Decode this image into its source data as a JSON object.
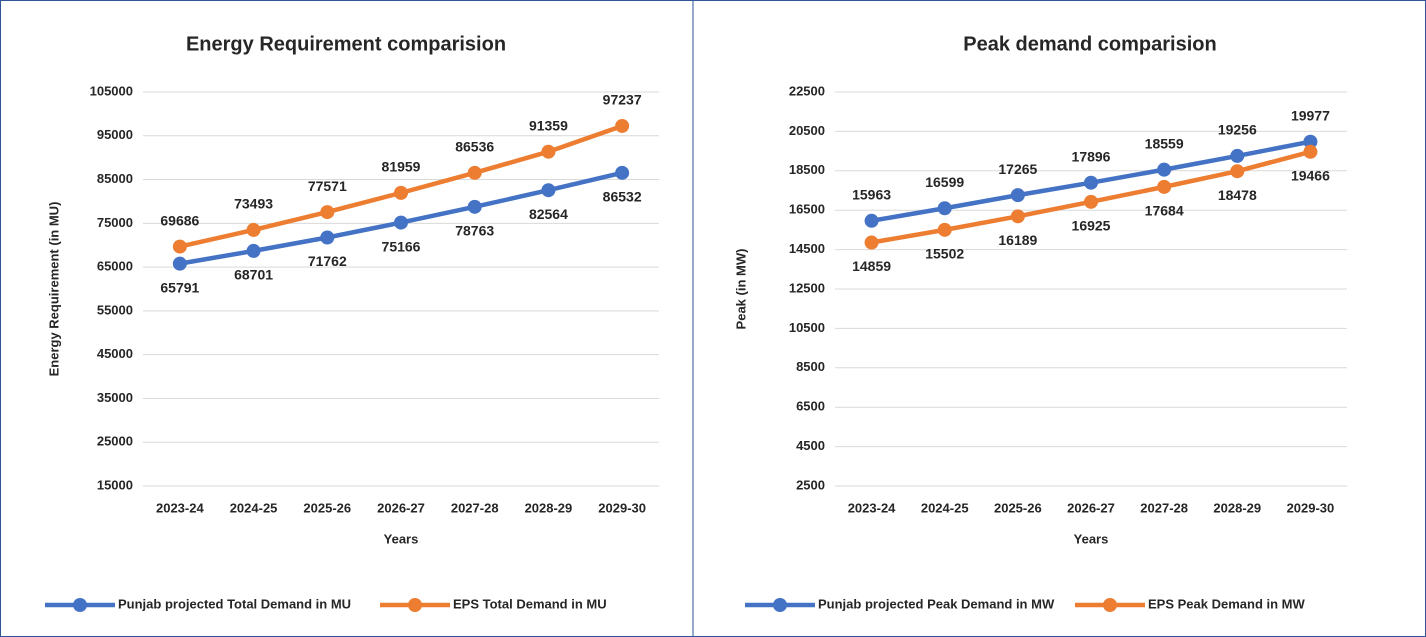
{
  "chart_data": [
    {
      "type": "line",
      "title": "Energy Requirement comparision",
      "x_label": "Years",
      "y_label": "Energy Requirement (in MU)",
      "categories": [
        "2023-24",
        "2024-25",
        "2025-26",
        "2026-27",
        "2027-28",
        "2028-29",
        "2029-30"
      ],
      "series": [
        {
          "name": "Punjab projected Total Demand in MU",
          "color": "#4472c4",
          "label_position": "below",
          "values": [
            65791,
            68701,
            71762,
            75166,
            78763,
            82564,
            86532
          ]
        },
        {
          "name": "EPS Total Demand in MU",
          "color": "#ed7d31",
          "label_position": "above",
          "values": [
            69686,
            73493,
            77571,
            81959,
            86536,
            91359,
            97237
          ]
        }
      ],
      "ylim": [
        15000,
        105000
      ],
      "yticks": [
        15000,
        25000,
        35000,
        45000,
        55000,
        65000,
        75000,
        85000,
        95000,
        105000
      ],
      "grid": true,
      "legend": "bottom"
    },
    {
      "type": "line",
      "title": "Peak demand comparision",
      "x_label": "Years",
      "y_label": "Peak (in MW)",
      "categories": [
        "2023-24",
        "2024-25",
        "2025-26",
        "2026-27",
        "2027-28",
        "2028-29",
        "2029-30"
      ],
      "series": [
        {
          "name": "Punjab projected Peak Demand in MW",
          "color": "#4472c4",
          "label_position": "above",
          "values": [
            15963,
            16599,
            17265,
            17896,
            18559,
            19256,
            19977
          ]
        },
        {
          "name": "EPS Peak Demand in MW",
          "color": "#ed7d31",
          "label_position": "below",
          "values": [
            14859,
            15502,
            16189,
            16925,
            17684,
            18478,
            19466
          ]
        }
      ],
      "ylim": [
        2500,
        22500
      ],
      "yticks": [
        2500,
        4500,
        6500,
        8500,
        10500,
        12500,
        14500,
        16500,
        18500,
        20500,
        22500
      ],
      "grid": true,
      "legend": "bottom"
    }
  ]
}
